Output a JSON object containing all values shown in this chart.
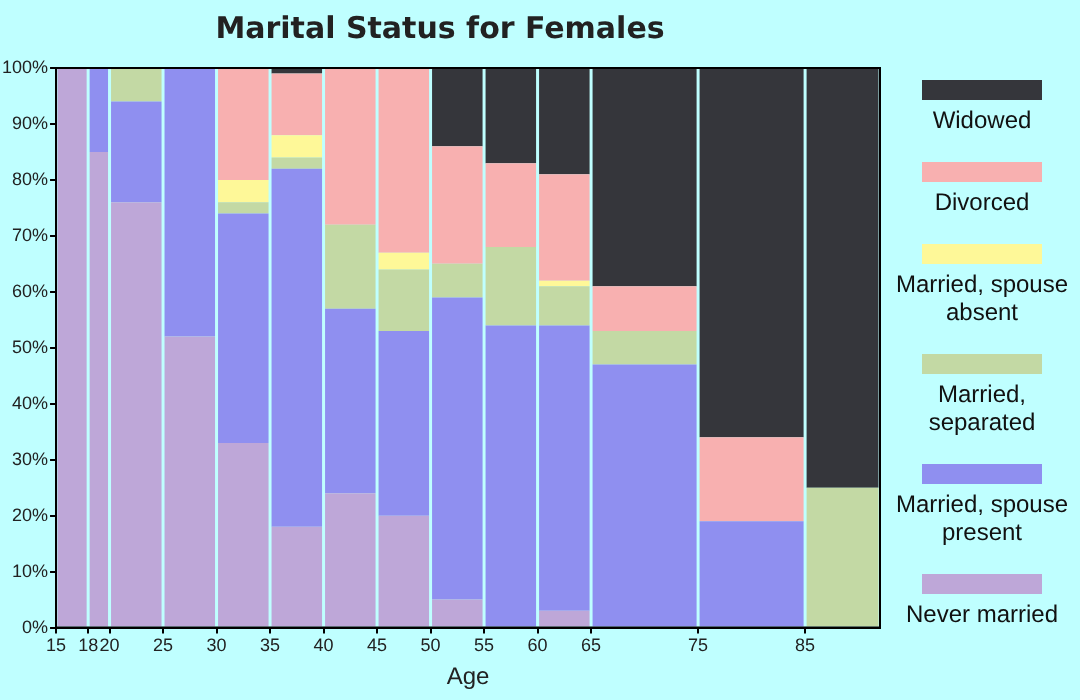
{
  "chart_data": {
    "type": "bar",
    "title": "Marital Status for Females",
    "xlabel": "Age",
    "stacked": true,
    "legend": "right",
    "x": [
      16.5,
      19,
      22.5,
      27.5,
      32.5,
      37.5,
      42.5,
      47.5,
      52.5,
      57.5,
      62.5,
      70,
      80,
      88.5
    ],
    "xlim": [
      15,
      92
    ],
    "xticks": [
      15,
      18,
      20,
      25,
      30,
      35,
      40,
      45,
      50,
      55,
      60,
      65,
      75,
      85
    ],
    "ylim": [
      0,
      100
    ],
    "yticks": [
      {
        "value": 0,
        "label": "0%"
      },
      {
        "value": 10,
        "label": "10%"
      },
      {
        "value": 20,
        "label": "20%"
      },
      {
        "value": 30,
        "label": "30%"
      },
      {
        "value": 40,
        "label": "40%"
      },
      {
        "value": 50,
        "label": "50%"
      },
      {
        "value": 60,
        "label": "60%"
      },
      {
        "value": 70,
        "label": "70%"
      },
      {
        "value": 80,
        "label": "80%"
      },
      {
        "value": 90,
        "label": "90%"
      },
      {
        "value": 100,
        "label": "100%"
      }
    ],
    "series": [
      {
        "name": "Never married",
        "color": "#bea7d8",
        "values": [
          100,
          85,
          76,
          52,
          33,
          18,
          24,
          20,
          5,
          0,
          3,
          0,
          0,
          0
        ]
      },
      {
        "name": "Married, spouse present",
        "color": "#8f8ff0",
        "values": [
          0,
          15,
          18,
          48,
          41,
          64,
          33,
          33,
          54,
          54,
          51,
          47,
          19,
          0
        ]
      },
      {
        "name": "Married, separated",
        "color": "#c3d9a4",
        "values": [
          0,
          0,
          6,
          0,
          2,
          2,
          15,
          11,
          6,
          14,
          7,
          6,
          0,
          25
        ]
      },
      {
        "name": "Married, spouse absent",
        "color": "#fef898",
        "values": [
          0,
          0,
          0,
          0,
          4,
          4,
          0,
          3,
          0,
          0,
          1,
          0,
          0,
          0
        ]
      },
      {
        "name": "Divorced",
        "color": "#f8b0b0",
        "values": [
          0,
          0,
          0,
          0,
          20,
          11,
          28,
          33,
          21,
          15,
          19,
          8,
          15,
          0
        ]
      },
      {
        "name": "Widowed",
        "color": "#35363b",
        "values": [
          0,
          0,
          0,
          0,
          0,
          1,
          0,
          0,
          14,
          17,
          19,
          39,
          66,
          75
        ]
      }
    ]
  }
}
